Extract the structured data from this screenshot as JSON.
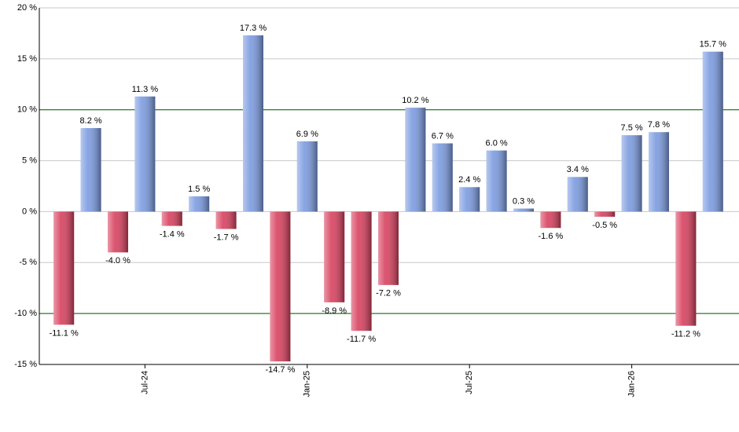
{
  "chart_data": {
    "type": "bar",
    "categories": [
      null,
      null,
      null,
      "Jul-24",
      null,
      null,
      null,
      null,
      null,
      "Jan-25",
      null,
      null,
      null,
      null,
      null,
      "Jul-25",
      null,
      null,
      null,
      null,
      null,
      "Jan-26",
      null,
      null,
      null
    ],
    "values": [
      -11.1,
      8.2,
      -4.0,
      11.3,
      -1.4,
      1.5,
      -1.7,
      17.3,
      -14.7,
      6.9,
      -8.9,
      -11.7,
      -7.2,
      10.2,
      6.7,
      2.4,
      6.0,
      0.3,
      -1.6,
      3.4,
      -0.5,
      7.5,
      7.8,
      -11.2,
      15.7
    ],
    "value_labels": [
      "-11.1 %",
      "8.2 %",
      "-4.0 %",
      "11.3 %",
      "-1.4 %",
      "1.5 %",
      "-1.7 %",
      "17.3 %",
      "-14.7 %",
      "6.9 %",
      "-8.9 %",
      "-11.7 %",
      "-7.2 %",
      "10.2 %",
      "6.7 %",
      "2.4 %",
      "6.0 %",
      "0.3 %",
      "-1.6 %",
      "3.4 %",
      "-0.5 %",
      "7.5 %",
      "7.8 %",
      "-11.2 %",
      "15.7 %"
    ],
    "positive_color": "#7b9be0",
    "negative_color": "#d8405e",
    "ylim": [
      -15,
      20
    ],
    "yticks": [
      {
        "value": -15,
        "label": "-15 %"
      },
      {
        "value": -10,
        "label": "-10 %"
      },
      {
        "value": -5,
        "label": "-5 %"
      },
      {
        "value": 0,
        "label": "0 %"
      },
      {
        "value": 5,
        "label": "5 %"
      },
      {
        "value": 10,
        "label": "10 %"
      },
      {
        "value": 15,
        "label": "15 %"
      },
      {
        "value": 20,
        "label": "20 %"
      }
    ],
    "grid": true,
    "grid_color": "#c8c8c8",
    "reference_lines": [
      {
        "value": 10,
        "color": "#006400"
      },
      {
        "value": -10,
        "color": "#006400"
      }
    ]
  }
}
